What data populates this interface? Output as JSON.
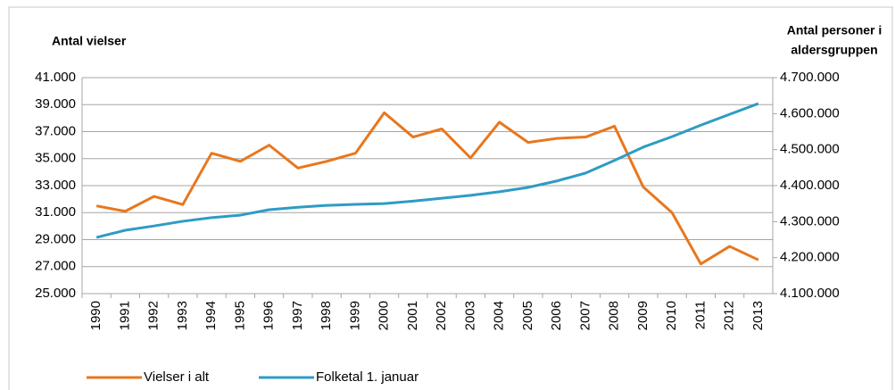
{
  "chart_data": {
    "type": "line",
    "y_label": "Antal vielser",
    "y2_label": [
      "Antal personer i",
      "aldersgruppen"
    ],
    "categories": [
      "1990",
      "1991",
      "1992",
      "1993",
      "1994",
      "1995",
      "1996",
      "1997",
      "1998",
      "1999",
      "2000",
      "2001",
      "2002",
      "2003",
      "2004",
      "2005",
      "2006",
      "2007",
      "2008",
      "2009",
      "2010",
      "2011",
      "2012",
      "2013"
    ],
    "series": [
      {
        "name": "Vielser i alt",
        "color": "#e8771e",
        "values": [
          31500,
          31100,
          32200,
          31600,
          35400,
          34800,
          36000,
          34300,
          34800,
          35400,
          38400,
          36600,
          37200,
          35050,
          37700,
          36200,
          36500,
          36600,
          37400,
          32900,
          31000,
          27200,
          28500,
          27500
        ]
      },
      {
        "name": "Folketal 1. januar",
        "color": "#2e9cc4",
        "axis": "y2",
        "values": [
          4256000,
          4276000,
          4288000,
          4301000,
          4311000,
          4318000,
          4333000,
          4340000,
          4345000,
          4348000,
          4350000,
          4357000,
          4365000,
          4373000,
          4383000,
          4395000,
          4413000,
          4435000,
          4470000,
          4507000,
          4536000,
          4568000,
          4598000,
          4628000
        ]
      }
    ],
    "ylim": [
      25000,
      41000
    ],
    "yticks": [
      {
        "value": 25000,
        "label": "25.000"
      },
      {
        "value": 27000,
        "label": "27.000"
      },
      {
        "value": 29000,
        "label": "29.000"
      },
      {
        "value": 31000,
        "label": "31.000"
      },
      {
        "value": 33000,
        "label": "33.000"
      },
      {
        "value": 35000,
        "label": "35.000"
      },
      {
        "value": 37000,
        "label": "37.000"
      },
      {
        "value": 39000,
        "label": "39.000"
      },
      {
        "value": 41000,
        "label": "41.000"
      }
    ],
    "y2lim": [
      4100000,
      4700000
    ],
    "y2ticks": [
      {
        "value": 4100000,
        "label": "4.100.000"
      },
      {
        "value": 4200000,
        "label": "4.200.000"
      },
      {
        "value": 4300000,
        "label": "4.300.000"
      },
      {
        "value": 4400000,
        "label": "4.400.000"
      },
      {
        "value": 4500000,
        "label": "4.500.000"
      },
      {
        "value": 4600000,
        "label": "4.600.000"
      },
      {
        "value": 4700000,
        "label": "4.700.000"
      }
    ],
    "grid": true,
    "legend": "bottom"
  }
}
